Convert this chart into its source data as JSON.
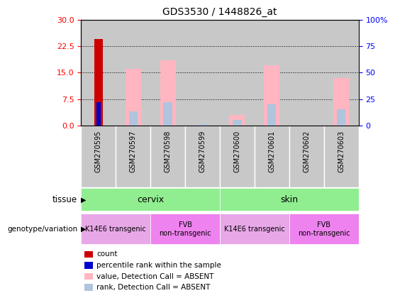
{
  "title": "GDS3530 / 1448826_at",
  "samples": [
    "GSM270595",
    "GSM270597",
    "GSM270598",
    "GSM270599",
    "GSM270600",
    "GSM270601",
    "GSM270602",
    "GSM270603"
  ],
  "count_values": [
    24.5,
    0,
    0,
    0,
    0,
    0,
    0,
    0
  ],
  "percentile_rank_values": [
    6.5,
    0,
    0,
    0,
    0,
    0,
    0,
    0
  ],
  "value_absent": [
    0,
    16.0,
    18.5,
    0,
    3.0,
    17.0,
    0,
    13.5
  ],
  "rank_absent": [
    0,
    4.0,
    6.5,
    0.3,
    1.5,
    6.0,
    0,
    4.5
  ],
  "ylim_left": [
    0,
    30
  ],
  "ylim_right": [
    0,
    100
  ],
  "yticks_left": [
    0,
    7.5,
    15,
    22.5,
    30
  ],
  "yticks_right": [
    0,
    25,
    50,
    75,
    100
  ],
  "ytick_right_labels": [
    "0",
    "25",
    "50",
    "75",
    "100%"
  ],
  "tissue_groups": [
    {
      "label": "cervix",
      "start": 0,
      "end": 4,
      "color": "#90EE90"
    },
    {
      "label": "skin",
      "start": 4,
      "end": 8,
      "color": "#90EE90"
    }
  ],
  "genotype_groups": [
    {
      "label": "K14E6 transgenic",
      "start": 0,
      "end": 2,
      "color": "#E8A8E8"
    },
    {
      "label": "FVB\nnon-transgenic",
      "start": 2,
      "end": 4,
      "color": "#EE82EE"
    },
    {
      "label": "K14E6 transgenic",
      "start": 4,
      "end": 6,
      "color": "#E8A8E8"
    },
    {
      "label": "FVB\nnon-transgenic",
      "start": 6,
      "end": 8,
      "color": "#EE82EE"
    }
  ],
  "color_count": "#CC0000",
  "color_percentile": "#0000CC",
  "color_value_absent": "#FFB6C1",
  "color_rank_absent": "#B0C4DE",
  "sample_bg_color": "#C8C8C8",
  "bar_width": 0.45,
  "rank_bar_width": 0.25
}
